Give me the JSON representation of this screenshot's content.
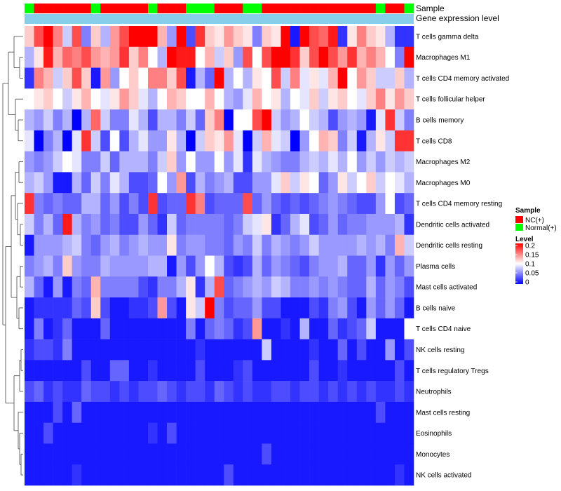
{
  "chart_data": {
    "type": "heatmap",
    "annotation_rows": [
      "Sample",
      "Gene expression level"
    ],
    "rows": [
      "T cells gamma delta",
      "Macrophages M1",
      "T cells CD4 memory activated",
      "T cells follicular helper",
      "B cells memory",
      "T cells CD8",
      "Macrophages M2",
      "Macrophages M0",
      "T cells CD4 memory resting",
      "Dendritic cells activated",
      "Dendritic cells resting",
      "Plasma cells",
      "Mast cells activated",
      "B cells naive",
      "T cells CD4 naive",
      "NK cells resting",
      "T cells regulatory  Tregs",
      "Neutrophils",
      "Mast cells resting",
      "Eosinophils",
      "Monocytes",
      "NK cells activated"
    ],
    "columns": 41,
    "sample_groups": [
      "N",
      "T",
      "T",
      "T",
      "T",
      "T",
      "T",
      "N",
      "T",
      "T",
      "T",
      "T",
      "T",
      "N",
      "T",
      "T",
      "T",
      "N",
      "N",
      "N",
      "T",
      "T",
      "T",
      "N",
      "N",
      "T",
      "T",
      "T",
      "T",
      "T",
      "T",
      "T",
      "T",
      "T",
      "T",
      "T",
      "T",
      "N",
      "T",
      "T",
      "N"
    ],
    "values": [
      [
        0.12,
        0.17,
        0.2,
        0.15,
        0.08,
        0.17,
        0.05,
        0.12,
        0.07,
        0.14,
        0.17,
        0.2,
        0.21,
        0.21,
        0.13,
        0.06,
        0.2,
        0.03,
        0.18,
        0.12,
        0.11,
        0.14,
        0.12,
        0.11,
        0.05,
        0.12,
        0.11,
        0.2,
        0.01,
        0.2,
        0.17,
        0.16,
        0.19,
        0.02,
        0.11,
        0.15,
        0.12,
        0.11,
        0.07,
        0.02,
        0.02
      ],
      [
        0.07,
        0.11,
        0.19,
        0.13,
        0.16,
        0.15,
        0.17,
        0.14,
        0.13,
        0.14,
        0.18,
        0.12,
        0.15,
        0.1,
        0.07,
        0.2,
        0.19,
        0.19,
        0.1,
        0.13,
        0.08,
        0.12,
        0.06,
        0.17,
        0.1,
        0.17,
        0.2,
        0.2,
        0.18,
        0.12,
        0.17,
        0.2,
        0.17,
        0.14,
        0.18,
        0.13,
        0.15,
        0.13,
        0.1,
        0.05,
        0.2
      ],
      [
        0.02,
        0.15,
        0.13,
        0.08,
        0.12,
        0.17,
        0.12,
        0.01,
        0.14,
        0.06,
        0.1,
        0.12,
        0.1,
        0.15,
        0.15,
        0.12,
        0.17,
        0.01,
        0.07,
        0.04,
        0.21,
        0.07,
        0.1,
        0.07,
        0.11,
        0.1,
        0.17,
        0.08,
        0.15,
        0.09,
        0.11,
        0.09,
        0.13,
        0.2,
        0.1,
        0.14,
        0.12,
        0.08,
        0.08,
        0.12,
        0.07
      ],
      [
        0.1,
        0.11,
        0.12,
        0.1,
        0.08,
        0.11,
        0.13,
        0.1,
        0.09,
        0.11,
        0.14,
        0.12,
        0.09,
        0.07,
        0.1,
        0.13,
        0.12,
        0.1,
        0.1,
        0.13,
        0.1,
        0.07,
        0.06,
        0.09,
        0.13,
        0.1,
        0.11,
        0.07,
        0.1,
        0.09,
        0.12,
        0.08,
        0.11,
        0.12,
        0.1,
        0.09,
        0.12,
        0.15,
        0.11,
        0.14,
        0.12
      ],
      [
        0.07,
        0.06,
        0.08,
        0.05,
        0.07,
        0.0,
        0.07,
        0.16,
        0.08,
        0.05,
        0.05,
        0.09,
        0.07,
        0.03,
        0.07,
        0.07,
        0.05,
        0.08,
        0.04,
        0.12,
        0.15,
        0.0,
        0.1,
        0.1,
        0.17,
        0.21,
        0.08,
        0.06,
        0.07,
        0.1,
        0.08,
        0.07,
        0.03,
        0.06,
        0.07,
        0.06,
        0.01,
        0.09,
        0.18,
        0.08,
        0.05
      ],
      [
        0.09,
        0.0,
        0.05,
        0.07,
        0.0,
        0.09,
        0.18,
        0.08,
        0.03,
        0.1,
        0.03,
        0.07,
        0.09,
        0.06,
        0.06,
        0.11,
        0.07,
        0.0,
        0.08,
        0.12,
        0.11,
        0.14,
        0.09,
        0.0,
        0.08,
        0.13,
        0.09,
        0.08,
        0.0,
        0.06,
        0.1,
        0.13,
        0.12,
        0.05,
        0.08,
        0.01,
        0.07,
        0.11,
        0.08,
        0.18,
        0.18
      ],
      [
        0.06,
        0.05,
        0.06,
        0.08,
        0.1,
        0.09,
        0.05,
        0.05,
        0.08,
        0.04,
        0.07,
        0.07,
        0.07,
        0.05,
        0.08,
        0.12,
        0.06,
        0.1,
        0.06,
        0.06,
        0.1,
        0.06,
        0.09,
        0.02,
        0.09,
        0.07,
        0.06,
        0.05,
        0.05,
        0.07,
        0.08,
        0.07,
        0.09,
        0.07,
        0.1,
        0.06,
        0.08,
        0.06,
        0.08,
        0.07,
        0.08
      ],
      [
        0.07,
        0.08,
        0.06,
        0.01,
        0.01,
        0.07,
        0.04,
        0.08,
        0.05,
        0.09,
        0.07,
        0.03,
        0.03,
        0.04,
        0.1,
        0.06,
        0.14,
        0.03,
        0.07,
        0.05,
        0.06,
        0.07,
        0.03,
        0.03,
        0.06,
        0.06,
        0.09,
        0.12,
        0.08,
        0.11,
        0.1,
        0.04,
        0.06,
        0.11,
        0.08,
        0.1,
        0.12,
        0.08,
        0.1,
        0.09,
        0.07
      ],
      [
        0.18,
        0.05,
        0.04,
        0.05,
        0.04,
        0.04,
        0.07,
        0.07,
        0.04,
        0.06,
        0.03,
        0.05,
        0.03,
        0.18,
        0.03,
        0.04,
        0.04,
        0.18,
        0.15,
        0.03,
        0.04,
        0.04,
        0.04,
        0.17,
        0.04,
        0.06,
        0.04,
        0.03,
        0.04,
        0.03,
        0.04,
        0.05,
        0.06,
        0.05,
        0.04,
        0.03,
        0.03,
        0.06,
        0.1,
        0.03,
        0.04
      ],
      [
        0.08,
        0.05,
        0.07,
        0.04,
        0.19,
        0.07,
        0.05,
        0.06,
        0.04,
        0.05,
        0.03,
        0.03,
        0.06,
        0.04,
        0.02,
        0.08,
        0.04,
        0.05,
        0.05,
        0.05,
        0.05,
        0.04,
        0.05,
        0.08,
        0.09,
        0.11,
        0.02,
        0.04,
        0.07,
        0.09,
        0.03,
        0.04,
        0.06,
        0.04,
        0.05,
        0.05,
        0.06,
        0.06,
        0.06,
        0.07,
        0.02
      ],
      [
        0.01,
        0.06,
        0.06,
        0.06,
        0.07,
        0.08,
        0.05,
        0.04,
        0.06,
        0.07,
        0.05,
        0.06,
        0.07,
        0.06,
        0.06,
        0.11,
        0.05,
        0.06,
        0.06,
        0.05,
        0.05,
        0.04,
        0.06,
        0.05,
        0.08,
        0.05,
        0.07,
        0.06,
        0.05,
        0.06,
        0.08,
        0.06,
        0.06,
        0.06,
        0.06,
        0.07,
        0.06,
        0.07,
        0.05,
        0.13,
        0.08
      ],
      [
        0.05,
        0.06,
        0.07,
        0.05,
        0.12,
        0.06,
        0.05,
        0.05,
        0.07,
        0.06,
        0.06,
        0.06,
        0.06,
        0.07,
        0.07,
        0.01,
        0.06,
        0.03,
        0.06,
        0.1,
        0.07,
        0.03,
        0.02,
        0.03,
        0.07,
        0.04,
        0.06,
        0.05,
        0.04,
        0.03,
        0.05,
        0.06,
        0.06,
        0.07,
        0.04,
        0.04,
        0.06,
        0.02,
        0.06,
        0.04,
        0.06
      ],
      [
        0.07,
        0.04,
        0.01,
        0.06,
        0.01,
        0.05,
        0.04,
        0.13,
        0.05,
        0.05,
        0.05,
        0.05,
        0.03,
        0.02,
        0.05,
        0.05,
        0.07,
        0.11,
        0.02,
        0.07,
        0.17,
        0.04,
        0.05,
        0.06,
        0.07,
        0.06,
        0.08,
        0.07,
        0.05,
        0.05,
        0.06,
        0.05,
        0.06,
        0.05,
        0.04,
        0.04,
        0.07,
        0.04,
        0.06,
        0.05,
        0.03
      ],
      [
        0.01,
        0.02,
        0.02,
        0.02,
        0.02,
        0.04,
        0.03,
        0.12,
        0.03,
        0.01,
        0.01,
        0.02,
        0.02,
        0.03,
        0.14,
        0.03,
        0.01,
        0.11,
        0.08,
        0.21,
        0.05,
        0.03,
        0.04,
        0.04,
        0.06,
        0.03,
        0.03,
        0.01,
        0.01,
        0.01,
        0.03,
        0.02,
        0.05,
        0.06,
        0.03,
        0.01,
        0.06,
        0.04,
        0.06,
        0.04,
        0.01
      ],
      [
        0.01,
        0.05,
        0.01,
        0.02,
        0.04,
        0.01,
        0.01,
        0.01,
        0.04,
        0.01,
        0.01,
        0.01,
        0.01,
        0.01,
        0.01,
        0.01,
        0.01,
        0.05,
        0.01,
        0.04,
        0.05,
        0.04,
        0.02,
        0.03,
        0.14,
        0.01,
        0.01,
        0.02,
        0.01,
        0.07,
        0.01,
        0.01,
        0.04,
        0.02,
        0.03,
        0.04,
        0.08,
        0.01,
        0.01,
        0.01,
        0.1
      ],
      [
        0.02,
        0.03,
        0.03,
        0.02,
        0.05,
        0.01,
        0.01,
        0.01,
        0.01,
        0.01,
        0.01,
        0.01,
        0.01,
        0.01,
        0.01,
        0.01,
        0.01,
        0.01,
        0.02,
        0.01,
        0.01,
        0.01,
        0.01,
        0.01,
        0.01,
        0.08,
        0.01,
        0.01,
        0.01,
        0.01,
        0.02,
        0.01,
        0.01,
        0.04,
        0.01,
        0.03,
        0.01,
        0.01,
        0.06,
        0.01,
        0.03
      ],
      [
        0.01,
        0.01,
        0.01,
        0.01,
        0.01,
        0.01,
        0.03,
        0.01,
        0.01,
        0.04,
        0.04,
        0.01,
        0.01,
        0.02,
        0.01,
        0.01,
        0.01,
        0.01,
        0.03,
        0.01,
        0.01,
        0.01,
        0.02,
        0.03,
        0.01,
        0.01,
        0.01,
        0.01,
        0.01,
        0.01,
        0.03,
        0.01,
        0.01,
        0.02,
        0.01,
        0.01,
        0.01,
        0.01,
        0.01,
        0.03,
        0.01
      ],
      [
        0.03,
        0.04,
        0.02,
        0.03,
        0.02,
        0.02,
        0.04,
        0.03,
        0.03,
        0.02,
        0.03,
        0.02,
        0.03,
        0.03,
        0.04,
        0.03,
        0.02,
        0.03,
        0.03,
        0.02,
        0.04,
        0.03,
        0.02,
        0.03,
        0.02,
        0.02,
        0.03,
        0.03,
        0.02,
        0.03,
        0.03,
        0.02,
        0.03,
        0.02,
        0.03,
        0.02,
        0.03,
        0.02,
        0.02,
        0.03,
        0.02
      ],
      [
        0.01,
        0.01,
        0.01,
        0.03,
        0.01,
        0.04,
        0.01,
        0.01,
        0.01,
        0.01,
        0.01,
        0.01,
        0.01,
        0.01,
        0.01,
        0.01,
        0.01,
        0.01,
        0.01,
        0.01,
        0.01,
        0.01,
        0.01,
        0.01,
        0.01,
        0.01,
        0.01,
        0.01,
        0.01,
        0.01,
        0.01,
        0.01,
        0.01,
        0.01,
        0.01,
        0.01,
        0.01,
        0.03,
        0.01,
        0.01,
        0.01
      ],
      [
        0.01,
        0.01,
        0.03,
        0.01,
        0.01,
        0.01,
        0.01,
        0.01,
        0.01,
        0.01,
        0.01,
        0.01,
        0.01,
        0.02,
        0.01,
        0.03,
        0.01,
        0.01,
        0.01,
        0.01,
        0.01,
        0.01,
        0.01,
        0.01,
        0.01,
        0.01,
        0.01,
        0.01,
        0.01,
        0.01,
        0.01,
        0.01,
        0.01,
        0.01,
        0.01,
        0.01,
        0.01,
        0.01,
        0.01,
        0.01,
        0.01
      ],
      [
        0.01,
        0.01,
        0.01,
        0.01,
        0.01,
        0.01,
        0.01,
        0.01,
        0.01,
        0.01,
        0.01,
        0.01,
        0.01,
        0.01,
        0.01,
        0.01,
        0.01,
        0.01,
        0.01,
        0.01,
        0.01,
        0.01,
        0.01,
        0.01,
        0.01,
        0.03,
        0.01,
        0.01,
        0.01,
        0.01,
        0.01,
        0.01,
        0.01,
        0.01,
        0.01,
        0.01,
        0.01,
        0.01,
        0.01,
        0.01,
        0.01
      ],
      [
        0.01,
        0.01,
        0.01,
        0.01,
        0.01,
        0.02,
        0.01,
        0.01,
        0.01,
        0.01,
        0.01,
        0.01,
        0.01,
        0.01,
        0.01,
        0.01,
        0.01,
        0.01,
        0.01,
        0.01,
        0.01,
        0.03,
        0.01,
        0.01,
        0.01,
        0.01,
        0.01,
        0.01,
        0.01,
        0.01,
        0.01,
        0.01,
        0.01,
        0.01,
        0.01,
        0.01,
        0.01,
        0.01,
        0.01,
        0.02,
        0.01
      ]
    ],
    "color_scale": {
      "min": 0,
      "max": 0.2,
      "colors": [
        "#0000ff",
        "#ffffff",
        "#ff0000"
      ]
    },
    "legend": {
      "sample_title": "Sample",
      "sample_items": [
        {
          "label": "NC(+)",
          "color": "#ff0000"
        },
        {
          "label": "Normal(+)",
          "color": "#00ff00"
        }
      ],
      "level_title": "Level",
      "level_ticks": [
        "0.2",
        "0.15",
        "0.1",
        "0.05",
        "0"
      ]
    },
    "expression_bar_color": "#87ceeb",
    "dendrogram": "row clustering (left)",
    "placement": "legend right"
  }
}
